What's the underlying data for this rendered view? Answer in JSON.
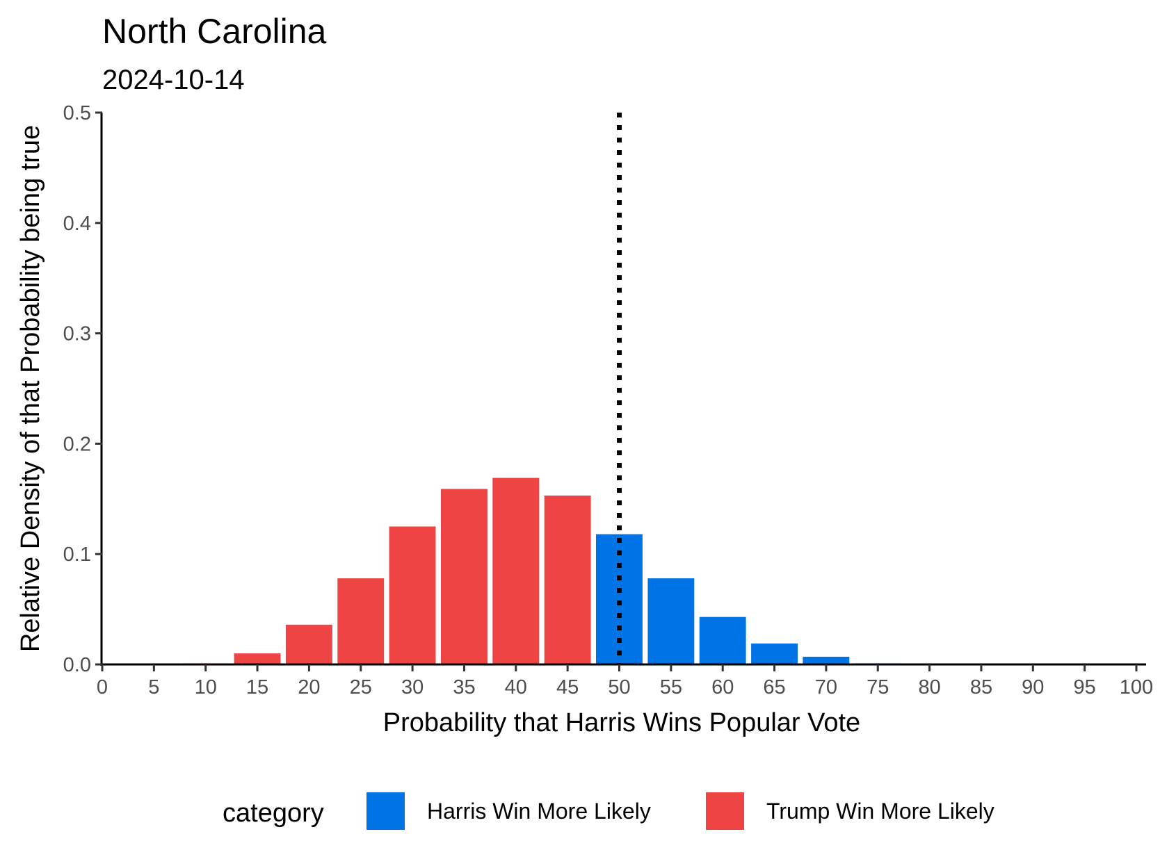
{
  "chart_data": {
    "type": "bar",
    "title": "North Carolina",
    "subtitle": "2024-10-14",
    "xlabel": "Probability that Harris Wins Popular Vote",
    "ylabel": "Relative Density of that Probability being true",
    "xlim": [
      0,
      100
    ],
    "ylim": [
      0,
      0.5
    ],
    "x_ticks": [
      "0",
      "5",
      "10",
      "15",
      "20",
      "25",
      "30",
      "35",
      "40",
      "45",
      "50",
      "55",
      "60",
      "65",
      "70",
      "75",
      "80",
      "85",
      "90",
      "95",
      "100"
    ],
    "y_ticks": [
      "0.0",
      "0.1",
      "0.2",
      "0.3",
      "0.4",
      "0.5"
    ],
    "reference_line": {
      "x": 50,
      "style": "dotted",
      "color": "#000000"
    },
    "grid": false,
    "legend": {
      "title": "category",
      "position": "bottom",
      "entries": [
        {
          "label": "Harris Win More Likely",
          "color": "#0073e6"
        },
        {
          "label": "Trump Win More Likely",
          "color": "#ef4444"
        }
      ]
    },
    "bars": [
      {
        "x": 10,
        "value": 0.001,
        "category": "Trump Win More Likely"
      },
      {
        "x": 15,
        "value": 0.01,
        "category": "Trump Win More Likely"
      },
      {
        "x": 20,
        "value": 0.036,
        "category": "Trump Win More Likely"
      },
      {
        "x": 25,
        "value": 0.078,
        "category": "Trump Win More Likely"
      },
      {
        "x": 30,
        "value": 0.125,
        "category": "Trump Win More Likely"
      },
      {
        "x": 35,
        "value": 0.159,
        "category": "Trump Win More Likely"
      },
      {
        "x": 40,
        "value": 0.169,
        "category": "Trump Win More Likely"
      },
      {
        "x": 45,
        "value": 0.153,
        "category": "Trump Win More Likely"
      },
      {
        "x": 50,
        "value": 0.118,
        "category": "Harris Win More Likely"
      },
      {
        "x": 55,
        "value": 0.078,
        "category": "Harris Win More Likely"
      },
      {
        "x": 60,
        "value": 0.043,
        "category": "Harris Win More Likely"
      },
      {
        "x": 65,
        "value": 0.019,
        "category": "Harris Win More Likely"
      },
      {
        "x": 70,
        "value": 0.007,
        "category": "Harris Win More Likely"
      },
      {
        "x": 75,
        "value": 0.001,
        "category": "Harris Win More Likely"
      }
    ]
  }
}
